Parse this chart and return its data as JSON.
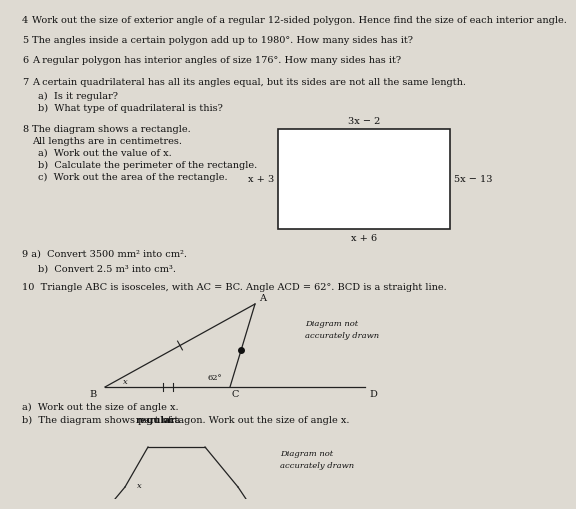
{
  "bg_color": "#dedad2",
  "text_color": "#111111",
  "font_size_q": 7.0,
  "font_size_small": 6.0,
  "rect_top_label": "3x − 2",
  "rect_left_label": "x + 3",
  "rect_right_label": "5x − 13",
  "rect_bottom_label": "x + 6",
  "q4": "Work out the size of exterior angle of a regular 12-sided polygon. Hence find the size of each interior angle.",
  "q5": "The angles inside a certain polygon add up to 1980°. How many sides has it?",
  "q6": "A regular polygon has interior angles of size 176°. How many sides has it?",
  "q7": "A certain quadrilateral has all its angles equal, but its sides are not all the same length.",
  "q7a": "a)  Is it regular?",
  "q7b": "b)  What type of quadrilateral is this?",
  "q8_line1": "The diagram shows a rectangle.",
  "q8_line2": "All lengths are in centimetres.",
  "q8a": "a)  Work out the value of x.",
  "q8b": "b)  Calculate the perimeter of the rectangle.",
  "q8c": "c)  Work out the area of the rectangle.",
  "q9a": "9 a)  Convert 3500 mm² into cm².",
  "q9b": "b)  Convert 2.5 m³ into cm³.",
  "q10": "10  Triangle ABC is isosceles, with AC = BC. Angle ACD = 62°. BCD is a straight line.",
  "q10a": "a)  Work out the size of angle x.",
  "q10b_pre": "b)  The diagram shows part of a ",
  "q10b_bold": "regular",
  "q10b_post": " octagon. Work out the size of angle x.",
  "diag_not": "Diagram not",
  "accurately_drawn": "accurately drawn"
}
